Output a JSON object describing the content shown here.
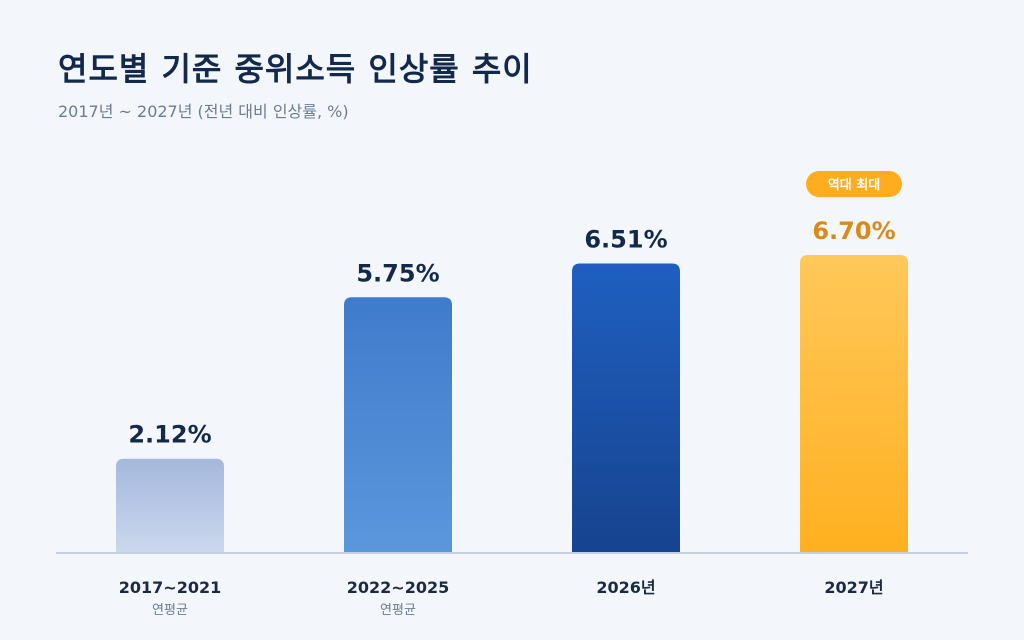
{
  "title": "연도별 기준 중위소득 인상률 추이",
  "subtitle": "2017년 ~ 2027년 (전년 대비 인상률, %)",
  "highlight_badge": "역대 최대",
  "colors": {
    "background": "#f3f7fb",
    "title": "#13294b",
    "highlight": "#d98a18",
    "value_text": "#13294b",
    "axis": "#c4d0e2"
  },
  "chart_data": {
    "type": "bar",
    "categories": [
      "2017~2021",
      "2022~2025",
      "2026년",
      "2027년"
    ],
    "category_sublabels": [
      "연평균",
      "연평균",
      "",
      ""
    ],
    "values": [
      2.12,
      5.75,
      6.51,
      6.7
    ],
    "value_labels": [
      "2.12%",
      "5.75%",
      "6.51%",
      "6.70%"
    ],
    "unit": "%",
    "ylim": [
      0,
      7
    ],
    "grid": false,
    "highlight_index": 3
  }
}
